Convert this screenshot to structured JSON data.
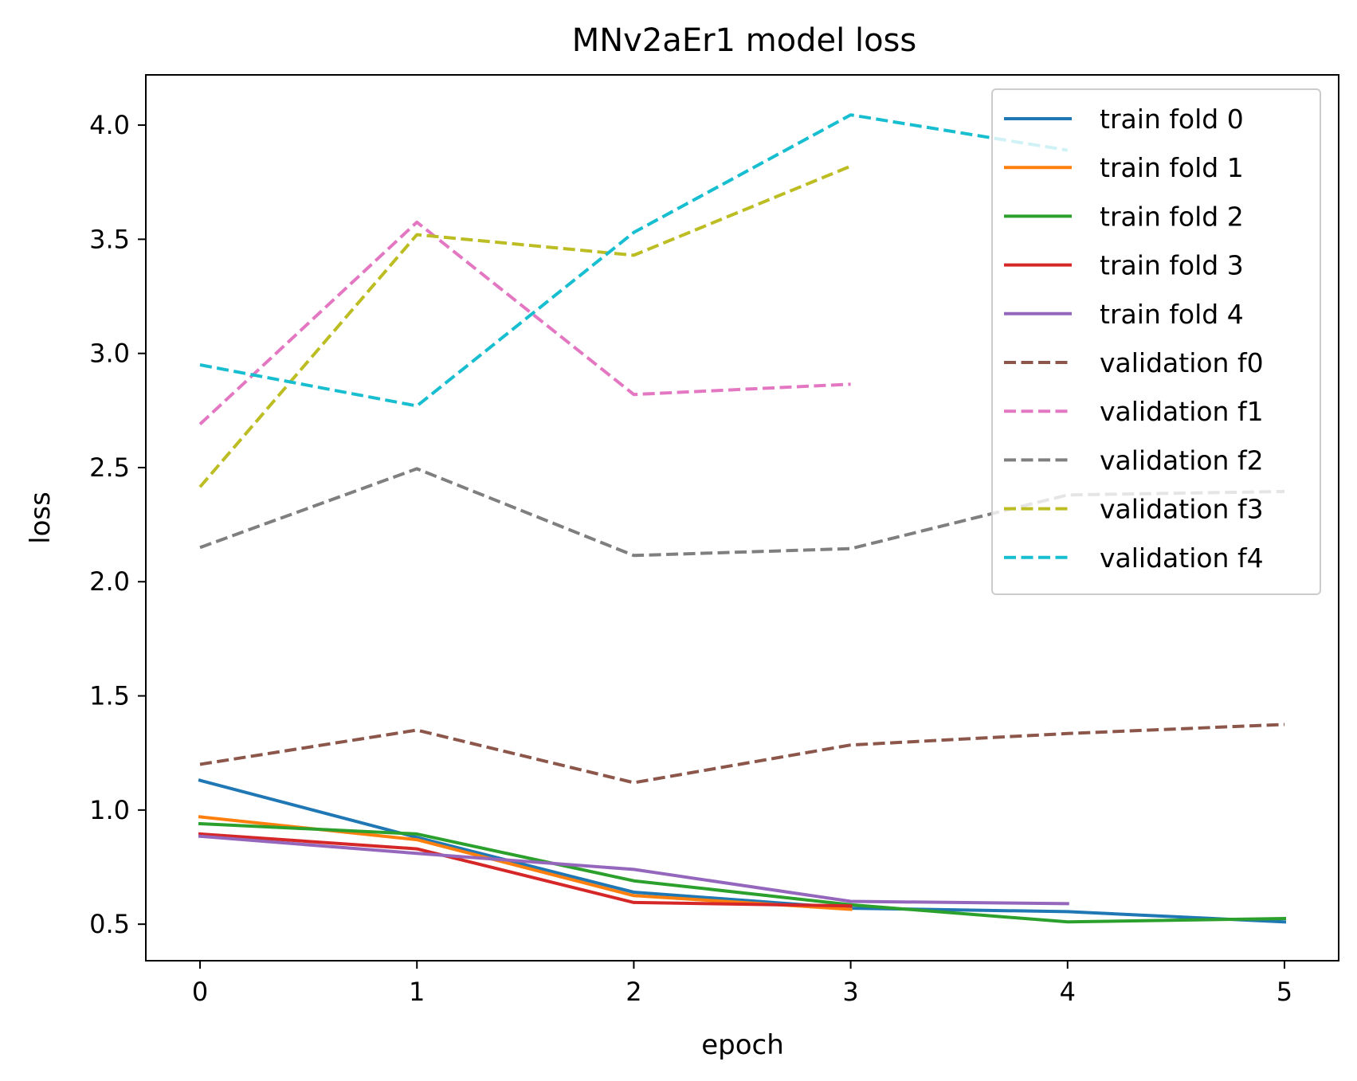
{
  "chart_data": {
    "type": "line",
    "title": "MNv2aEr1 model loss",
    "xlabel": "epoch",
    "ylabel": "loss",
    "xlim": [
      -0.25,
      5.25
    ],
    "ylim": [
      0.34,
      4.22
    ],
    "xticks": [
      0,
      1,
      2,
      3,
      4,
      5
    ],
    "xtick_labels": [
      "0",
      "1",
      "2",
      "3",
      "4",
      "5"
    ],
    "yticks": [
      0.5,
      1.0,
      1.5,
      2.0,
      2.5,
      3.0,
      3.5,
      4.0
    ],
    "ytick_labels": [
      "0.5",
      "1.0",
      "1.5",
      "2.0",
      "2.5",
      "3.0",
      "3.5",
      "4.0"
    ],
    "grid": false,
    "legend_position": "upper right",
    "series": [
      {
        "name": "train fold 0",
        "style": "solid",
        "color": "#1f77b4",
        "x": [
          0,
          1,
          2,
          3,
          4,
          5
        ],
        "y": [
          1.13,
          0.88,
          0.64,
          0.57,
          0.555,
          0.51
        ]
      },
      {
        "name": "train fold 1",
        "style": "solid",
        "color": "#ff7f0e",
        "x": [
          0,
          1,
          2,
          3
        ],
        "y": [
          0.97,
          0.87,
          0.625,
          0.565
        ]
      },
      {
        "name": "train fold 2",
        "style": "solid",
        "color": "#2ca02c",
        "x": [
          0,
          1,
          2,
          3,
          4,
          5
        ],
        "y": [
          0.94,
          0.895,
          0.69,
          0.585,
          0.51,
          0.525
        ]
      },
      {
        "name": "train fold 3",
        "style": "solid",
        "color": "#d62728",
        "x": [
          0,
          1,
          2,
          3
        ],
        "y": [
          0.895,
          0.83,
          0.595,
          0.58
        ]
      },
      {
        "name": "train fold 4",
        "style": "solid",
        "color": "#9467bd",
        "x": [
          0,
          1,
          2,
          3,
          4
        ],
        "y": [
          0.885,
          0.81,
          0.74,
          0.6,
          0.59
        ]
      },
      {
        "name": "validation f0",
        "style": "dashed",
        "color": "#8c564b",
        "x": [
          0,
          1,
          2,
          3,
          4,
          5
        ],
        "y": [
          1.2,
          1.35,
          1.12,
          1.285,
          1.335,
          1.375
        ]
      },
      {
        "name": "validation f1",
        "style": "dashed",
        "color": "#e377c2",
        "x": [
          0,
          1,
          2,
          3
        ],
        "y": [
          2.69,
          3.575,
          2.82,
          2.865
        ]
      },
      {
        "name": "validation f2",
        "style": "dashed",
        "color": "#7f7f7f",
        "x": [
          0,
          1,
          2,
          3,
          4,
          5
        ],
        "y": [
          2.15,
          2.495,
          2.115,
          2.145,
          2.38,
          2.395
        ]
      },
      {
        "name": "validation f3",
        "style": "dashed",
        "color": "#bcbd22",
        "x": [
          0,
          1,
          2,
          3
        ],
        "y": [
          2.415,
          3.52,
          3.43,
          3.82
        ]
      },
      {
        "name": "validation f4",
        "style": "dashed",
        "color": "#17becf",
        "x": [
          0,
          1,
          2,
          3,
          4
        ],
        "y": [
          2.95,
          2.77,
          3.53,
          4.045,
          3.89
        ]
      }
    ]
  }
}
